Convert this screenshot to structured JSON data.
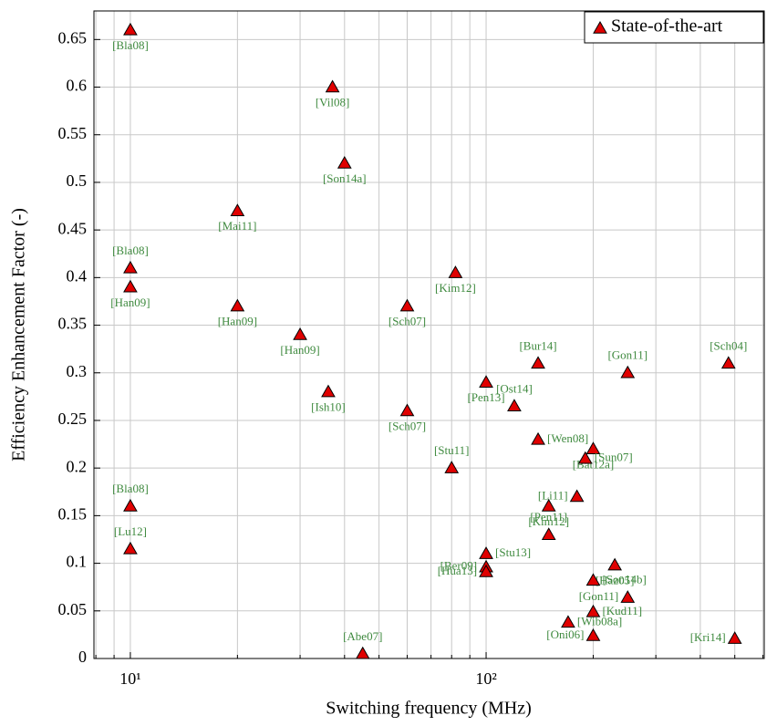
{
  "chart_data": {
    "type": "scatter",
    "xlabel": "Switching frequency (MHz)",
    "ylabel": "Efficiency Enhancement Factor (-)",
    "xscale": "log",
    "xlim": [
      7.9,
      605
    ],
    "ylim": [
      0,
      0.68
    ],
    "xticks": [
      {
        "value": 10,
        "label": "10¹"
      },
      {
        "value": 100,
        "label": "10²"
      }
    ],
    "xminor": [
      8,
      9,
      20,
      30,
      40,
      50,
      60,
      70,
      80,
      90,
      200,
      300,
      400,
      500,
      600
    ],
    "yticks": [
      0,
      0.05,
      0.1,
      0.15,
      0.2,
      0.25,
      0.3,
      0.35,
      0.4,
      0.45,
      0.5,
      0.55,
      0.6,
      0.65
    ],
    "grid": true,
    "legend_position": "upper right",
    "series": [
      {
        "name": "State-of-the-art",
        "color": "#e00000",
        "x": [
          10,
          37,
          40,
          20,
          10,
          10,
          20,
          30,
          36,
          60,
          60,
          82,
          80,
          140,
          250,
          480,
          100,
          120,
          140,
          200,
          190,
          150,
          180,
          100,
          150,
          100,
          100,
          230,
          200,
          250,
          200,
          170,
          200,
          500,
          45,
          10,
          10
        ],
        "values": [
          0.66,
          0.6,
          0.52,
          0.47,
          0.41,
          0.39,
          0.37,
          0.34,
          0.28,
          0.37,
          0.26,
          0.405,
          0.2,
          0.31,
          0.3,
          0.31,
          0.29,
          0.265,
          0.23,
          0.22,
          0.21,
          0.16,
          0.17,
          0.11,
          0.13,
          0.096,
          0.091,
          0.098,
          0.082,
          0.064,
          0.049,
          0.038,
          0.024,
          0.021,
          0.005,
          0.16,
          0.115
        ],
        "point_labels": [
          "[Bla08]",
          "[Vil08]",
          "[Son14a]",
          "[Mai11]",
          "[Bla08]",
          "[Han09]",
          "[Han09]",
          "[Han09]",
          "[Ish10]",
          "[Sch07]",
          "[Sch07]",
          "[Kim12]",
          "[Stu11]",
          "[Bur14]",
          "[Gon11]",
          "[Sch04]",
          "[Pen13]",
          "[Ost14]",
          "[Wen08]",
          "[Bat12a]",
          "[Sun07]",
          "[Kim12]",
          "[Li11]",
          "[Stu13]",
          "[Pen11]",
          "[Ber09]",
          "[Hua13]",
          "[Haz05]",
          "[Son14b]",
          "[Gon11]",
          "[Kud11]",
          "[Wib08a]",
          "[Oni06]",
          "[Kri14]",
          "[Abe07]",
          "[Bla08]",
          "[Lu12]"
        ]
      }
    ]
  }
}
